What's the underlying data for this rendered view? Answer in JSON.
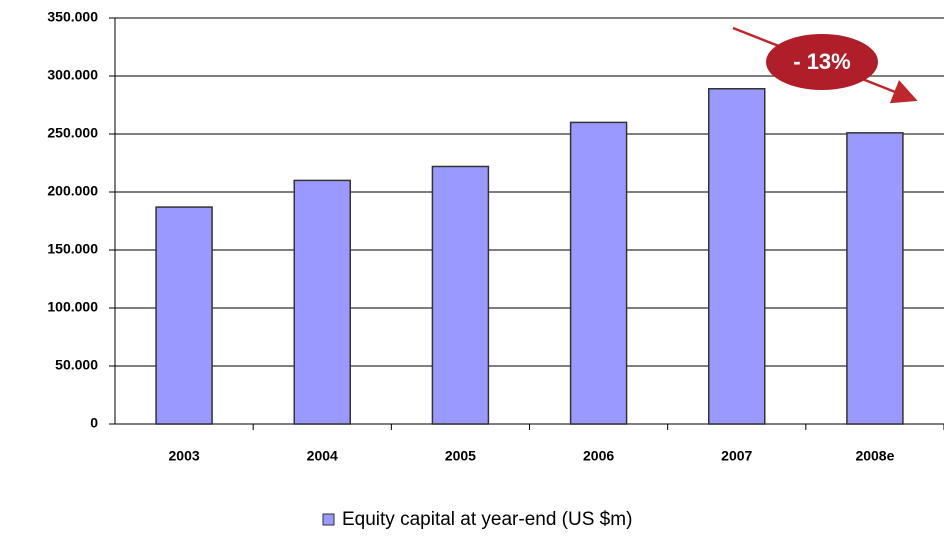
{
  "chart_data": {
    "type": "bar",
    "categories": [
      "2003",
      "2004",
      "2005",
      "2006",
      "2007",
      "2008e"
    ],
    "series": [
      {
        "name": "Equity capital at year-end (US $m)",
        "color": "#9999ff",
        "values": [
          187000,
          210000,
          222000,
          260000,
          289000,
          251000
        ]
      }
    ],
    "ylim": [
      0,
      350000
    ],
    "yticks": [
      0,
      {
        "value": 50000,
        "label": "50.000"
      },
      {
        "value": 100000,
        "label": "100.000"
      },
      {
        "value": 150000,
        "label": "150.000"
      },
      {
        "value": 200000,
        "label": "200.000"
      },
      {
        "value": 250000,
        "label": "250.000"
      },
      {
        "value": 300000,
        "label": "300.000"
      },
      {
        "value": 350000,
        "label": "350.000"
      }
    ],
    "grid": true,
    "annotation": "- 13%",
    "legend": "bottom"
  }
}
